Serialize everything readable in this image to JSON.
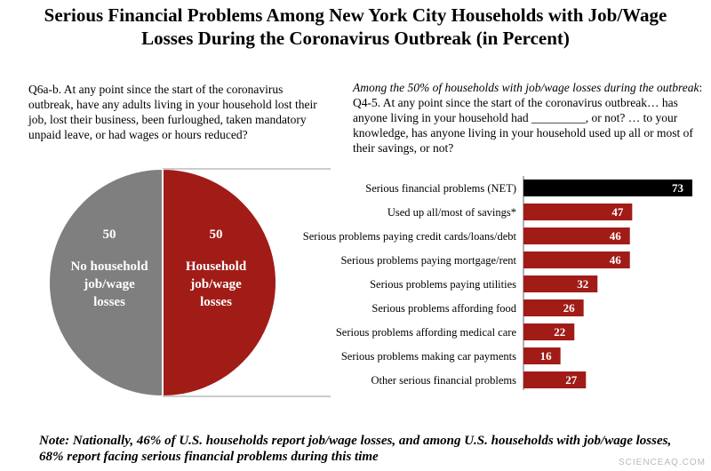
{
  "title_line1": "Serious Financial Problems Among New York City Households with Job/Wage",
  "title_line2": "Losses During the Coronavirus Outbreak (in Percent)",
  "question_left": "Q6a-b. At any point since the start of the coronavirus outbreak, have any adults living in your household lost their job, lost their business, been furloughed, taken mandatory unpaid leave, or had wages or hours reduced?",
  "question_right_italic": "Among the 50% of households with job/wage losses during the outbreak",
  "question_right_text": ": Q4-5. At any point since the start of the coronavirus outbreak… has anyone living in your household had _________, or not? … to your knowledge, has anyone living in your household used up all or most of their savings, or not?",
  "note": "Note: Nationally, 46% of U.S. households report job/wage losses, and among U.S. households with job/wage losses, 68% report facing serious financial problems during this time",
  "credit": "SCIENCEAQ.COM",
  "colors": {
    "gray": "#7f7f7f",
    "red": "#a11c17",
    "black": "#000000"
  },
  "chart_data": [
    {
      "type": "pie",
      "slices": [
        {
          "label_line1": "No household",
          "label_line2": "job/wage",
          "label_line3": "losses",
          "value": 50,
          "color": "#7f7f7f"
        },
        {
          "label_line1": "Household",
          "label_line2": "job/wage",
          "label_line3": "losses",
          "value": 50,
          "color": "#a11c17"
        }
      ]
    },
    {
      "type": "bar",
      "orientation": "horizontal",
      "xlim": [
        0,
        73
      ],
      "categories": [
        "Serious financial problems (NET)",
        "Used up all/most of savings*",
        "Serious problems paying credit cards/loans/debt",
        "Serious problems paying mortgage/rent",
        "Serious problems paying utilities",
        "Serious problems affording food",
        "Serious problems affording medical care",
        "Serious problems making car payments",
        "Other serious financial problems"
      ],
      "values": [
        73,
        47,
        46,
        46,
        32,
        26,
        22,
        16,
        27
      ],
      "colors": [
        "#000000",
        "#a11c17",
        "#a11c17",
        "#a11c17",
        "#a11c17",
        "#a11c17",
        "#a11c17",
        "#a11c17",
        "#a11c17"
      ]
    }
  ]
}
